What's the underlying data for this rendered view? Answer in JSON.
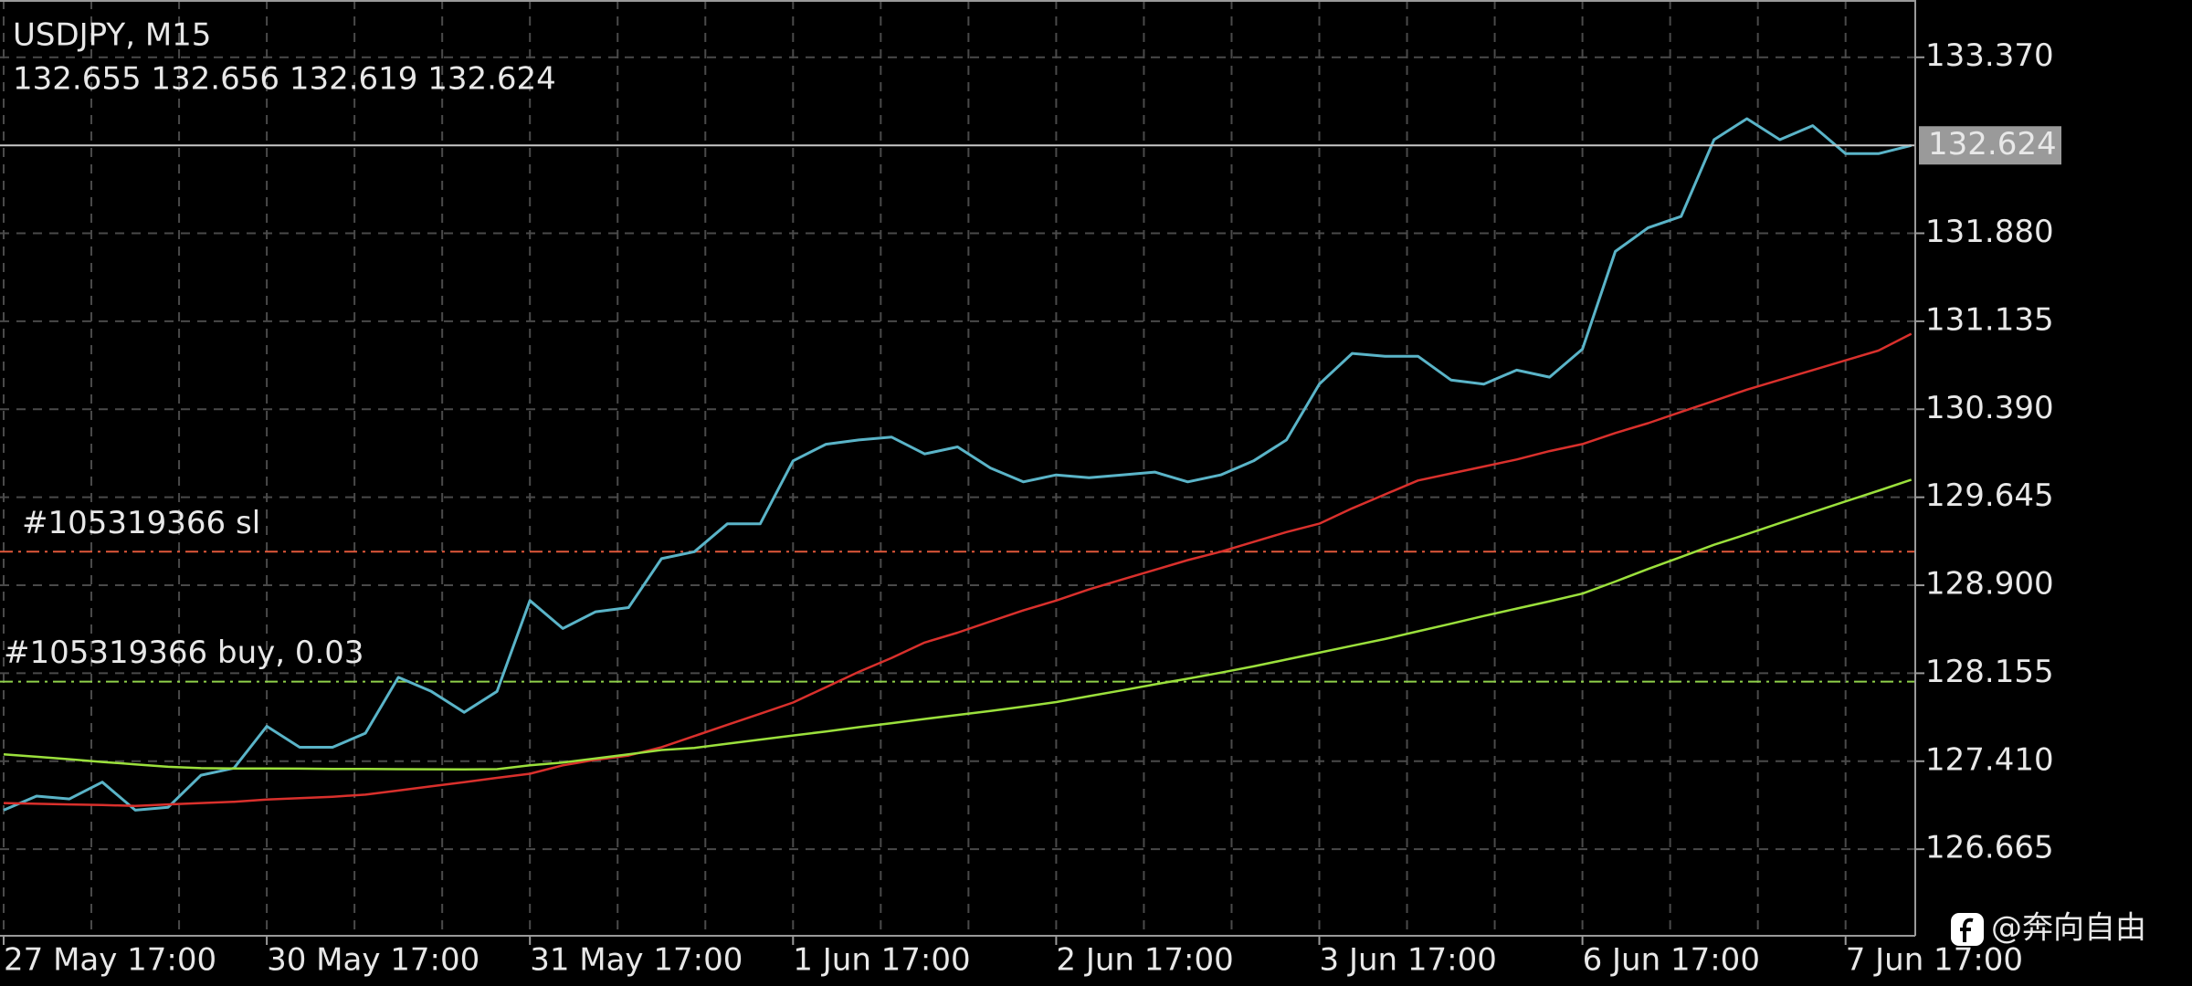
{
  "chart_data": {
    "type": "line",
    "title": "USDJPY, M15",
    "ohlc_text": "132.655 132.656 132.619 132.624",
    "categories": [
      "27 May 17:00",
      null,
      null,
      null,
      null,
      null,
      null,
      null,
      "30 May 17:00",
      null,
      null,
      null,
      null,
      null,
      null,
      null,
      "31 May 17:00",
      null,
      null,
      null,
      null,
      null,
      null,
      null,
      "1 Jun 17:00",
      null,
      null,
      null,
      null,
      null,
      null,
      null,
      "2 Jun 17:00",
      null,
      null,
      null,
      null,
      null,
      null,
      null,
      "3 Jun 17:00",
      null,
      null,
      null,
      null,
      null,
      null,
      null,
      "6 Jun 17:00",
      null,
      null,
      null,
      null,
      null,
      null,
      null,
      "7 Jun 17:00",
      null,
      null
    ],
    "series": [
      {
        "color": "#5ab4c8",
        "values": [
          126.996,
          127.115,
          127.091,
          127.233,
          126.996,
          127.02,
          127.292,
          127.351,
          127.706,
          127.528,
          127.528,
          127.647,
          128.12,
          128.001,
          127.824,
          128.001,
          128.77,
          128.534,
          128.675,
          128.711,
          129.125,
          129.184,
          129.42,
          129.42,
          129.953,
          130.094,
          130.13,
          130.154,
          130.012,
          130.071,
          129.893,
          129.775,
          129.834,
          129.811,
          129.834,
          129.858,
          129.775,
          129.834,
          129.953,
          130.13,
          130.603,
          130.863,
          130.839,
          130.839,
          130.638,
          130.603,
          130.721,
          130.662,
          130.899,
          131.726,
          131.927,
          132.022,
          132.672,
          132.85,
          132.672,
          132.791,
          132.554,
          132.554,
          132.624
        ]
      },
      {
        "color": "#d9302c",
        "values": [
          127.056,
          127.05,
          127.044,
          127.039,
          127.032,
          127.044,
          127.056,
          127.067,
          127.085,
          127.097,
          127.109,
          127.127,
          127.162,
          127.198,
          127.233,
          127.269,
          127.304,
          127.375,
          127.422,
          127.458,
          127.529,
          127.623,
          127.718,
          127.812,
          127.907,
          128.037,
          128.167,
          128.285,
          128.415,
          128.498,
          128.593,
          128.687,
          128.77,
          128.865,
          128.948,
          129.03,
          129.113,
          129.184,
          129.267,
          129.35,
          129.421,
          129.551,
          129.669,
          129.787,
          129.846,
          129.905,
          129.965,
          130.036,
          130.095,
          130.189,
          130.272,
          130.367,
          130.461,
          130.556,
          130.639,
          130.721,
          130.804,
          130.887,
          131.029
        ]
      },
      {
        "color": "#9be03c",
        "values": [
          127.469,
          127.448,
          127.427,
          127.404,
          127.384,
          127.363,
          127.351,
          127.349,
          127.348,
          127.347,
          127.345,
          127.344,
          127.343,
          127.342,
          127.341,
          127.343,
          127.375,
          127.399,
          127.434,
          127.469,
          127.505,
          127.523,
          127.558,
          127.593,
          127.628,
          127.662,
          127.698,
          127.732,
          127.768,
          127.802,
          127.836,
          127.872,
          127.911,
          127.961,
          128.01,
          128.061,
          128.109,
          128.16,
          128.213,
          128.271,
          128.329,
          128.388,
          128.445,
          128.51,
          128.574,
          128.64,
          128.702,
          128.764,
          128.829,
          128.931,
          129.038,
          129.139,
          129.243,
          129.332,
          129.427,
          129.518,
          129.61,
          129.7,
          129.794
        ]
      }
    ],
    "ylim": [
      125.932,
      133.855
    ],
    "yticks": [
      {
        "value": 133.37,
        "label": "133.370"
      },
      {
        "value": 131.88,
        "label": "131.880"
      },
      {
        "value": 131.135,
        "label": "131.135"
      },
      {
        "value": 130.39,
        "label": "130.390"
      },
      {
        "value": 129.645,
        "label": "129.645"
      },
      {
        "value": 128.9,
        "label": "128.900"
      },
      {
        "value": 128.155,
        "label": "128.155"
      },
      {
        "value": 127.41,
        "label": "127.410"
      },
      {
        "value": 126.665,
        "label": "126.665"
      }
    ],
    "grid": true,
    "last_price": {
      "value": 132.624,
      "label": "132.624",
      "color": "#c8c8c8"
    },
    "levels": [
      {
        "label": "#105319366 sl",
        "value": 129.184,
        "color": "#e0583a"
      },
      {
        "label": "#105319366 buy, 0.03",
        "value": 128.084,
        "color": "#8fd04a"
      }
    ]
  },
  "watermark": "@奔向自由"
}
